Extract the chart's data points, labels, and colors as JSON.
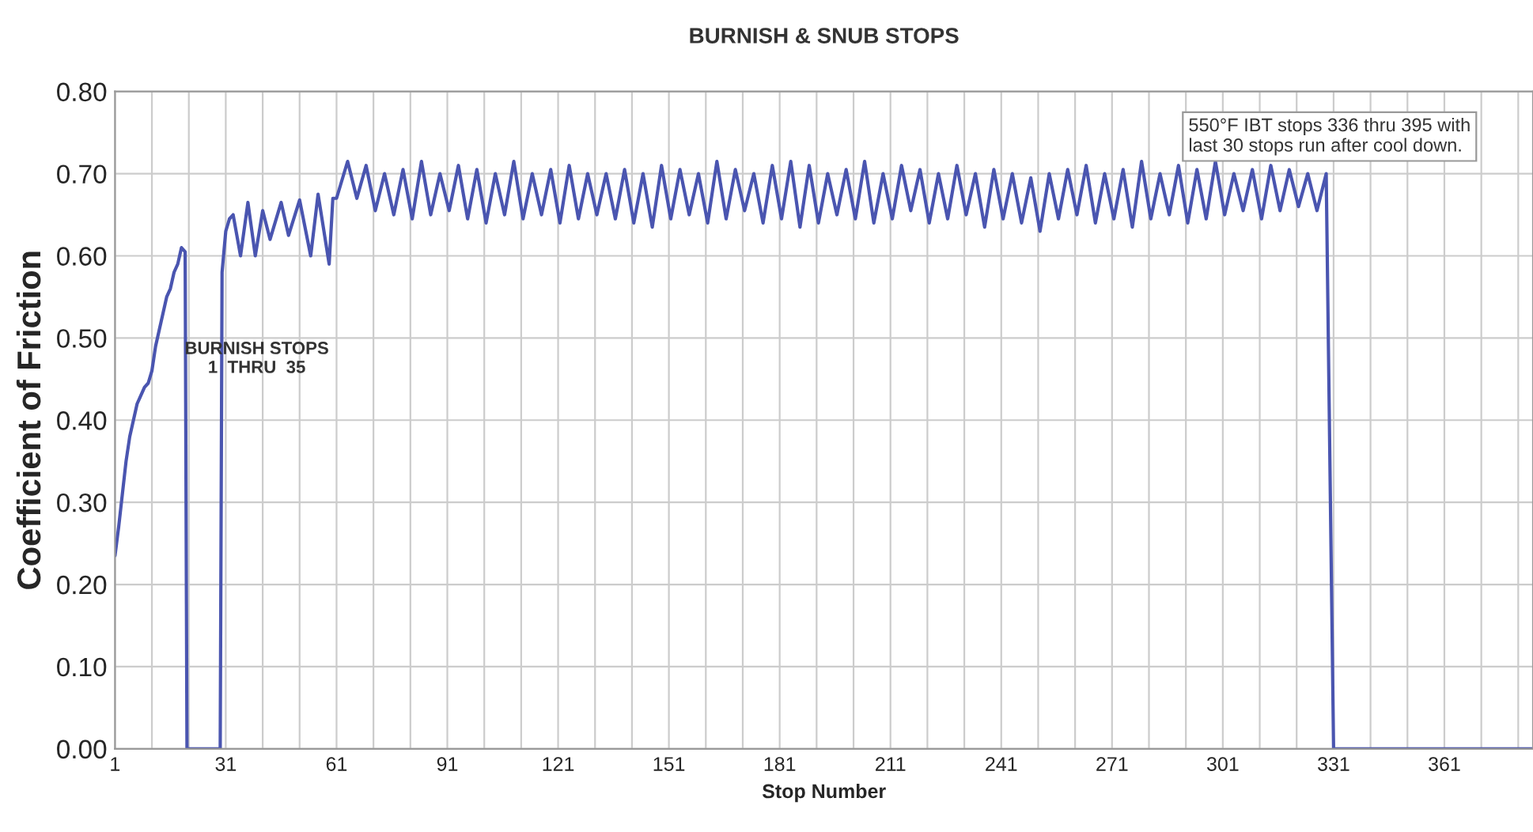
{
  "chart_data": {
    "type": "line",
    "title": "BURNISH & SNUB STOPS",
    "xlabel": "Stop Number",
    "ylabel": "Coefficient of Friction",
    "annotations": [
      "BURNISH STOPS\n1  THRU  35",
      "550°F IBT stops 336 thru 395 with\nlast 30 stops run after cool down."
    ],
    "xlim": [
      1,
      385
    ],
    "ylim": [
      0,
      0.8
    ],
    "grid": true,
    "marker": "none",
    "line_style": "solid",
    "xticks": [
      1,
      {
        "value": 11,
        "label": null
      },
      {
        "value": 21,
        "label": null
      },
      31,
      {
        "value": 41,
        "label": null
      },
      {
        "value": 51,
        "label": null
      },
      61,
      {
        "value": 71,
        "label": null
      },
      {
        "value": 81,
        "label": null
      },
      91,
      {
        "value": 101,
        "label": null
      },
      {
        "value": 111,
        "label": null
      },
      121,
      {
        "value": 131,
        "label": null
      },
      {
        "value": 141,
        "label": null
      },
      151,
      {
        "value": 161,
        "label": null
      },
      {
        "value": 171,
        "label": null
      },
      181,
      {
        "value": 191,
        "label": null
      },
      {
        "value": 201,
        "label": null
      },
      211,
      {
        "value": 221,
        "label": null
      },
      {
        "value": 231,
        "label": null
      },
      241,
      {
        "value": 251,
        "label": null
      },
      {
        "value": 261,
        "label": null
      },
      271,
      {
        "value": 281,
        "label": null
      },
      {
        "value": 291,
        "label": null
      },
      301,
      {
        "value": 311,
        "label": null
      },
      {
        "value": 321,
        "label": null
      },
      331,
      {
        "value": 341,
        "label": null
      },
      {
        "value": 351,
        "label": null
      },
      361,
      {
        "value": 371,
        "label": null
      },
      {
        "value": 381,
        "label": null
      }
    ],
    "yticks": [
      {
        "value": 0,
        "label": "0.00"
      },
      {
        "value": 0.1,
        "label": "0.10"
      },
      {
        "value": 0.2,
        "label": "0.20"
      },
      {
        "value": 0.3,
        "label": "0.30"
      },
      {
        "value": 0.4,
        "label": "0.40"
      },
      {
        "value": 0.5,
        "label": "0.50"
      },
      {
        "value": 0.6,
        "label": "0.60"
      },
      {
        "value": 0.7,
        "label": "0.70"
      },
      {
        "value": 0.8,
        "label": "0.80"
      }
    ],
    "series": [
      {
        "color": "#4a55b0",
        "x": [
          1,
          2,
          3,
          4,
          5,
          6,
          7,
          8,
          9,
          10,
          11,
          12,
          13,
          14,
          15,
          16,
          17,
          18,
          19,
          20,
          20.5,
          29.5,
          30,
          31,
          32,
          33,
          35,
          37,
          39,
          41,
          43,
          46,
          48,
          51,
          54,
          56,
          59,
          60,
          61,
          64,
          66.5,
          69,
          71.5,
          74,
          76.5,
          79,
          81.5,
          84,
          86.5,
          89,
          91.5,
          94,
          96.5,
          99,
          101.5,
          104,
          106.5,
          109,
          111.5,
          114,
          116.5,
          119,
          121.5,
          124,
          126.5,
          129,
          131.5,
          134,
          136.5,
          139,
          141.5,
          144,
          146.5,
          149,
          151.5,
          154,
          156.5,
          159,
          161.5,
          164,
          166.5,
          169,
          171.5,
          174,
          176.5,
          179,
          181.5,
          184,
          186.5,
          189,
          191.5,
          194,
          196.5,
          199,
          201.5,
          204,
          206.5,
          209,
          211.5,
          214,
          216.5,
          219,
          221.5,
          224,
          226.5,
          229,
          231.5,
          234,
          236.5,
          239,
          241.5,
          244,
          246.5,
          249,
          251.5,
          254,
          256.5,
          259,
          261.5,
          264,
          266.5,
          269,
          271.5,
          274,
          276.5,
          279,
          281.5,
          284,
          286.5,
          289,
          291.5,
          294,
          296.5,
          299,
          301.5,
          304,
          306.5,
          309,
          311.5,
          314,
          316.5,
          319,
          321.5,
          324,
          326.5,
          329,
          331,
          385
        ],
        "values": [
          0.235,
          0.27,
          0.31,
          0.35,
          0.38,
          0.4,
          0.42,
          0.43,
          0.44,
          0.445,
          0.46,
          0.49,
          0.51,
          0.53,
          0.55,
          0.56,
          0.58,
          0.59,
          0.61,
          0.605,
          0,
          0,
          0.58,
          0.63,
          0.645,
          0.65,
          0.6,
          0.665,
          0.6,
          0.655,
          0.62,
          0.665,
          0.625,
          0.668,
          0.6,
          0.675,
          0.59,
          0.67,
          0.67,
          0.715,
          0.67,
          0.71,
          0.655,
          0.7,
          0.65,
          0.705,
          0.645,
          0.715,
          0.65,
          0.7,
          0.655,
          0.71,
          0.645,
          0.705,
          0.64,
          0.7,
          0.65,
          0.715,
          0.645,
          0.7,
          0.65,
          0.705,
          0.64,
          0.71,
          0.645,
          0.7,
          0.65,
          0.7,
          0.645,
          0.705,
          0.64,
          0.7,
          0.635,
          0.71,
          0.645,
          0.705,
          0.65,
          0.7,
          0.64,
          0.715,
          0.645,
          0.705,
          0.655,
          0.7,
          0.64,
          0.71,
          0.645,
          0.715,
          0.635,
          0.71,
          0.64,
          0.7,
          0.65,
          0.705,
          0.645,
          0.715,
          0.64,
          0.7,
          0.645,
          0.71,
          0.655,
          0.705,
          0.64,
          0.7,
          0.645,
          0.71,
          0.65,
          0.7,
          0.635,
          0.705,
          0.645,
          0.7,
          0.64,
          0.695,
          0.63,
          0.7,
          0.645,
          0.705,
          0.65,
          0.71,
          0.64,
          0.7,
          0.645,
          0.705,
          0.635,
          0.715,
          0.645,
          0.7,
          0.65,
          0.71,
          0.64,
          0.705,
          0.645,
          0.715,
          0.65,
          0.7,
          0.655,
          0.705,
          0.645,
          0.71,
          0.655,
          0.705,
          0.66,
          0.7,
          0.655,
          0.7,
          0,
          0
        ]
      }
    ]
  }
}
